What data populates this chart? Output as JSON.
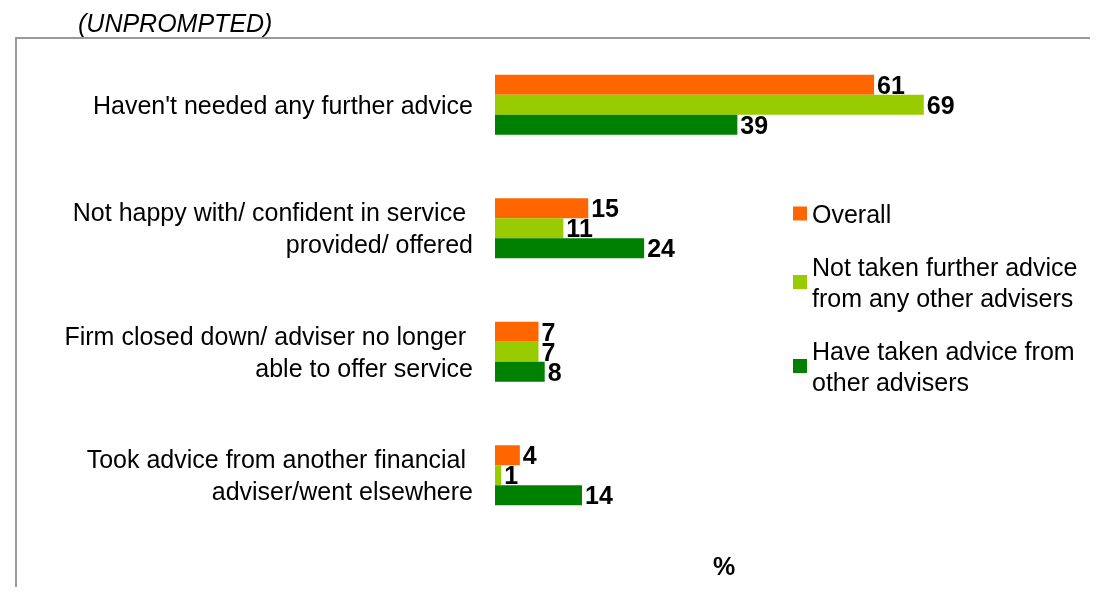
{
  "chart_data": {
    "type": "bar",
    "orientation": "horizontal",
    "subtitle": "(UNPROMPTED)",
    "xlabel": "%",
    "categories": [
      "Haven't needed any further advice",
      "Not happy with/ confident in service provided/ offered",
      "Firm closed down/ adviser no longer able to offer service",
      "Took advice from another financial adviser/went elsewhere"
    ],
    "series": [
      {
        "name": "Overall",
        "color": "#ff6600",
        "values": [
          61,
          15,
          7,
          4
        ]
      },
      {
        "name": "Not taken further advice from any other advisers",
        "color": "#99cc00",
        "values": [
          69,
          11,
          7,
          1
        ]
      },
      {
        "name": "Have taken advice from other advisers",
        "color": "#008000",
        "values": [
          39,
          24,
          8,
          14
        ]
      }
    ],
    "data_labels": true,
    "legend": "right"
  }
}
